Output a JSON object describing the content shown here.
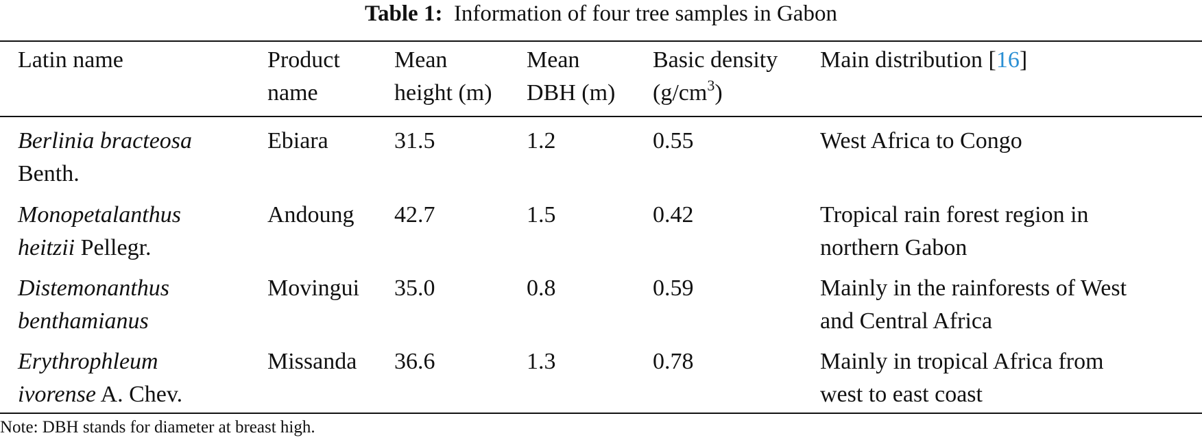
{
  "caption": {
    "label": "Table 1:",
    "text": "Information of four tree samples in Gabon"
  },
  "headers": {
    "latin": "Latin name",
    "product_1": "Product",
    "product_2": "name",
    "height_1": "Mean",
    "height_2": "height (m)",
    "dbh_1": "Mean",
    "dbh_2": "DBH (m)",
    "density_1": "Basic density",
    "density_2a": "(g/cm",
    "density_2sup": "3",
    "density_2b": ")",
    "distribution": "Main distribution [",
    "distribution_ref": "16",
    "distribution_close": "]"
  },
  "rows": [
    {
      "latin_italic_1": "Berlinia bracteosa",
      "latin_italic_2": "",
      "latin_rest_2": "Benth.",
      "product": "Ebiara",
      "height": "31.5",
      "dbh": "1.2",
      "density": "0.55",
      "distribution_1": "West Africa to Congo",
      "distribution_2": ""
    },
    {
      "latin_italic_1": "Monopetalanthus",
      "latin_italic_2": "heitzii",
      "latin_rest_2": " Pellegr.",
      "product": "Andoung",
      "height": "42.7",
      "dbh": "1.5",
      "density": "0.42",
      "distribution_1": "Tropical rain forest region in",
      "distribution_2": "northern Gabon"
    },
    {
      "latin_italic_1": "Distemonanthus",
      "latin_italic_2": "benthamianus",
      "latin_rest_2": "",
      "product": "Movingui",
      "height": "35.0",
      "dbh": "0.8",
      "density": "0.59",
      "distribution_1": "Mainly in the rainforests of West",
      "distribution_2": "and Central Africa"
    },
    {
      "latin_italic_1": "Erythrophleum",
      "latin_italic_2": "ivorense",
      "latin_rest_2": " A. Chev.",
      "product": "Missanda",
      "height": "36.6",
      "dbh": "1.3",
      "density": "0.78",
      "distribution_1": "Mainly in tropical Africa from",
      "distribution_2": "west to east coast"
    }
  ],
  "note": "Note: DBH stands for diameter at breast high."
}
